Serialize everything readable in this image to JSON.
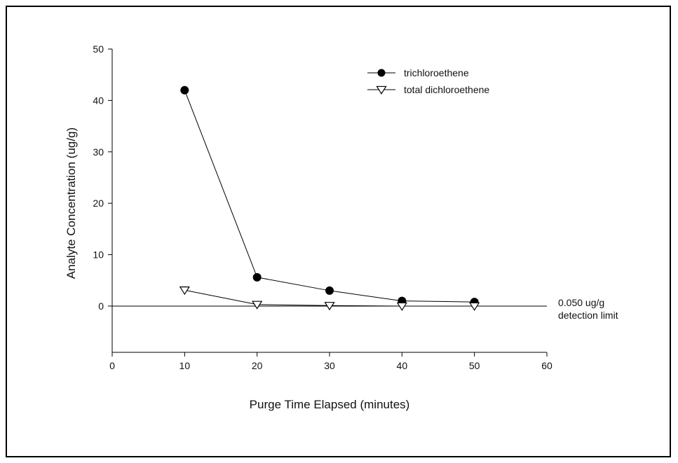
{
  "chart_data": {
    "type": "line",
    "title": "",
    "xlabel": "Purge Time Elapsed (minutes)",
    "ylabel": "Analyte Concentration (ug/g)",
    "xlim": [
      0,
      60
    ],
    "ylim": [
      -9,
      50
    ],
    "x_ticks": [
      0,
      10,
      20,
      30,
      40,
      50,
      60
    ],
    "y_ticks": [
      0,
      10,
      20,
      30,
      40,
      50
    ],
    "grid": false,
    "legend_position": "top-right",
    "series": [
      {
        "name": "trichloroethene",
        "marker": "filled-circle",
        "x": [
          10,
          20,
          30,
          40,
          50
        ],
        "y": [
          42,
          5.6,
          3,
          1,
          0.8
        ]
      },
      {
        "name": "total dichloroethene",
        "marker": "open-triangle-down",
        "x": [
          10,
          20,
          30,
          40,
          50
        ],
        "y": [
          3.1,
          0.3,
          0.1,
          0,
          0
        ]
      }
    ],
    "reference_line": {
      "y": 0,
      "label_line1": "0.050 ug/g",
      "label_line2": "detection limit"
    }
  }
}
